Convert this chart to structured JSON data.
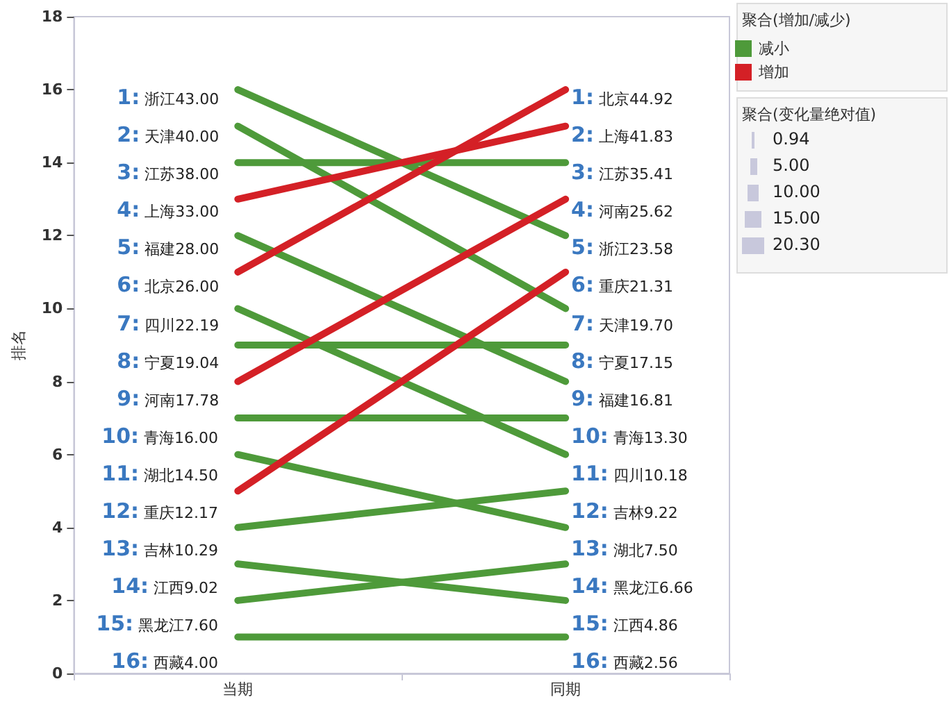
{
  "chart_data": {
    "type": "line",
    "ylabel": "排名",
    "categories": [
      "当期",
      "同期"
    ],
    "ylim": [
      0,
      18
    ],
    "yticks": [
      0,
      2,
      4,
      6,
      8,
      10,
      12,
      14,
      16,
      18
    ],
    "grid": false,
    "marker": "none",
    "legend": "top right",
    "legend_title": "聚合(增加/减少)",
    "series": [
      {
        "name": "减小",
        "color": "#4e9a3a",
        "values": [
          16,
          12
        ]
      },
      {
        "color": "#4e9a3a",
        "values": [
          15,
          10
        ]
      },
      {
        "color": "#4e9a3a",
        "values": [
          14,
          14
        ]
      },
      {
        "name": "增加",
        "color": "#d42026",
        "values": [
          13,
          15
        ]
      },
      {
        "color": "#4e9a3a",
        "values": [
          12,
          8
        ]
      },
      {
        "color": "#d42026",
        "values": [
          11,
          16
        ]
      },
      {
        "color": "#4e9a3a",
        "values": [
          10,
          6
        ]
      },
      {
        "color": "#4e9a3a",
        "values": [
          9,
          9
        ]
      },
      {
        "color": "#d42026",
        "values": [
          8,
          13
        ]
      },
      {
        "color": "#4e9a3a",
        "values": [
          7,
          7
        ]
      },
      {
        "color": "#4e9a3a",
        "values": [
          6,
          4
        ]
      },
      {
        "color": "#d42026",
        "values": [
          5,
          11
        ]
      },
      {
        "color": "#4e9a3a",
        "values": [
          4,
          5
        ]
      },
      {
        "color": "#4e9a3a",
        "values": [
          3,
          2
        ]
      },
      {
        "color": "#4e9a3a",
        "values": [
          2,
          3
        ]
      },
      {
        "color": "#4e9a3a",
        "values": [
          1,
          1
        ]
      }
    ],
    "annotations": [
      "聚合(变化量绝对值)",
      "0.94",
      "5.00",
      "10.00",
      "15.00",
      "20.30",
      "1: 浙江43.00",
      "2: 天津40.00",
      "3: 江苏38.00",
      "4: 上海33.00",
      "5: 福建28.00",
      "6: 北京26.00",
      "7: 四川22.19",
      "8: 宁夏19.04",
      "9: 河南17.78",
      "10: 青海16.00",
      "11: 湖北14.50",
      "12: 重庆12.17",
      "13: 吉林10.29",
      "14: 江西9.02",
      "15: 黑龙江7.60",
      "16: 西藏4.00",
      "1: 北京44.92",
      "2: 上海41.83",
      "3: 江苏35.41",
      "4: 河南25.62",
      "5: 浙江23.58",
      "6: 重庆21.31",
      "7: 天津19.70",
      "8: 宁夏17.15",
      "9: 福建16.81",
      "10: 青海13.30",
      "11: 四川10.18",
      "12: 吉林9.22",
      "13: 湖北7.50",
      "14: 黑龙江6.66",
      "15: 江西4.86",
      "16: 西藏2.56"
    ]
  }
}
